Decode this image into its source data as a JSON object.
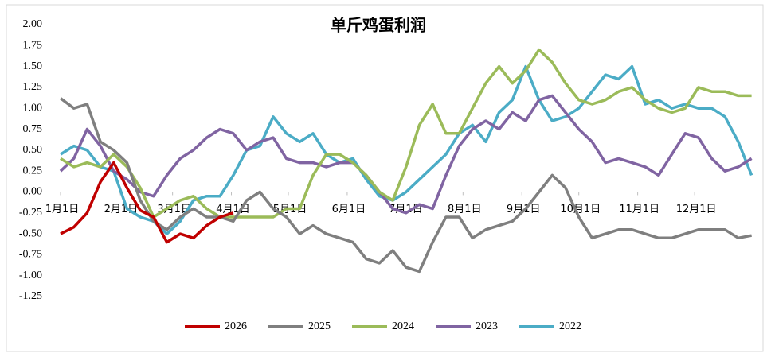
{
  "chart_data": {
    "type": "line",
    "title": "单斤鸡蛋利润",
    "x": [
      1,
      8,
      15,
      22,
      29,
      36,
      43,
      50,
      57,
      64,
      71,
      78,
      85,
      92,
      99,
      106,
      113,
      120,
      127,
      134,
      141,
      148,
      155,
      162,
      169,
      176,
      183,
      190,
      197,
      204,
      211,
      218,
      225,
      232,
      239,
      246,
      253,
      260,
      267,
      274,
      281,
      288,
      295,
      302,
      309,
      316,
      323,
      330,
      337,
      344,
      351,
      358,
      365
    ],
    "xlim": [
      1,
      366
    ],
    "xticks": [
      {
        "value": 1,
        "label": "1月1日"
      },
      {
        "value": 32,
        "label": "2月1日"
      },
      {
        "value": 60,
        "label": "3月1日"
      },
      {
        "value": 91,
        "label": "4月1日"
      },
      {
        "value": 121,
        "label": "5月1日"
      },
      {
        "value": 152,
        "label": "6月1日"
      },
      {
        "value": 182,
        "label": "7月1日"
      },
      {
        "value": 213,
        "label": "8月1日"
      },
      {
        "value": 244,
        "label": "9月1日"
      },
      {
        "value": 274,
        "label": "10月1日"
      },
      {
        "value": 305,
        "label": "11月1日"
      },
      {
        "value": 335,
        "label": "12月1日"
      }
    ],
    "ylim": [
      -1.25,
      2.0
    ],
    "yticks": [
      {
        "value": 2,
        "label": "2.00"
      },
      {
        "value": 1.75,
        "label": "1.75"
      },
      {
        "value": 1.5,
        "label": "1.50"
      },
      {
        "value": 1.25,
        "label": "1.25"
      },
      {
        "value": 1,
        "label": "1.00"
      },
      {
        "value": 0.75,
        "label": "0.75"
      },
      {
        "value": 0.5,
        "label": "0.50"
      },
      {
        "value": 0.25,
        "label": "0.25"
      },
      {
        "value": 0,
        "label": "0.00"
      },
      {
        "value": -0.25,
        "label": "-0.25"
      },
      {
        "value": -0.5,
        "label": "-0.50"
      },
      {
        "value": -0.75,
        "label": "-0.75"
      },
      {
        "value": -1,
        "label": "-1.00"
      },
      {
        "value": -1.25,
        "label": "-1.25"
      }
    ],
    "grid": false,
    "legend": "bottom",
    "series": [
      {
        "name": "2026",
        "color": "#c00000",
        "values": [
          -0.5,
          -0.42,
          -0.25,
          0.12,
          0.35,
          0.05,
          -0.22,
          -0.3,
          -0.6,
          -0.5,
          -0.55,
          -0.4,
          -0.3,
          -0.25,
          null,
          null,
          null,
          null,
          null,
          null,
          null,
          null,
          null,
          null,
          null,
          null,
          null,
          null,
          null,
          null,
          null,
          null,
          null,
          null,
          null,
          null,
          null,
          null,
          null,
          null,
          null,
          null,
          null,
          null,
          null,
          null,
          null,
          null,
          null,
          null,
          null,
          null,
          null
        ]
      },
      {
        "name": "2025",
        "color": "#7f7f7f",
        "values": [
          1.12,
          1.0,
          1.05,
          0.6,
          0.5,
          0.35,
          -0.1,
          -0.35,
          -0.45,
          -0.3,
          -0.2,
          -0.3,
          -0.3,
          -0.35,
          -0.1,
          0.0,
          -0.2,
          -0.3,
          -0.5,
          -0.4,
          -0.5,
          -0.55,
          -0.6,
          -0.8,
          -0.85,
          -0.7,
          -0.9,
          -0.95,
          -0.6,
          -0.3,
          -0.3,
          -0.55,
          -0.45,
          -0.4,
          -0.35,
          -0.2,
          0.0,
          0.2,
          0.05,
          -0.3,
          -0.55,
          -0.5,
          -0.45,
          -0.45,
          -0.5,
          -0.55,
          -0.55,
          -0.5,
          -0.45,
          -0.45,
          -0.45,
          -0.55,
          -0.52
        ]
      },
      {
        "name": "2024",
        "color": "#9bbb59",
        "values": [
          0.4,
          0.3,
          0.35,
          0.3,
          0.45,
          0.3,
          0.05,
          -0.3,
          -0.2,
          -0.1,
          -0.05,
          -0.2,
          -0.3,
          -0.3,
          -0.3,
          -0.3,
          -0.3,
          -0.2,
          -0.2,
          0.2,
          0.45,
          0.45,
          0.35,
          0.2,
          0.0,
          -0.1,
          0.3,
          0.8,
          1.05,
          0.7,
          0.7,
          1.0,
          1.3,
          1.5,
          1.3,
          1.45,
          1.7,
          1.55,
          1.3,
          1.1,
          1.05,
          1.1,
          1.2,
          1.25,
          1.1,
          1.0,
          0.95,
          1.0,
          1.25,
          1.2,
          1.2,
          1.15,
          1.15
        ]
      },
      {
        "name": "2023",
        "color": "#8064a2",
        "values": [
          0.25,
          0.4,
          0.75,
          0.55,
          0.25,
          0.15,
          0.0,
          -0.05,
          0.2,
          0.4,
          0.5,
          0.65,
          0.75,
          0.7,
          0.5,
          0.6,
          0.65,
          0.4,
          0.35,
          0.35,
          0.3,
          0.35,
          0.35,
          0.2,
          0.0,
          -0.2,
          -0.25,
          -0.15,
          -0.2,
          0.2,
          0.55,
          0.75,
          0.85,
          0.75,
          0.95,
          0.85,
          1.1,
          1.15,
          0.95,
          0.75,
          0.6,
          0.35,
          0.4,
          0.35,
          0.3,
          0.2,
          0.45,
          0.7,
          0.65,
          0.4,
          0.25,
          0.3,
          0.4
        ]
      },
      {
        "name": "2022",
        "color": "#4bacc6",
        "values": [
          0.45,
          0.55,
          0.5,
          0.3,
          0.25,
          -0.2,
          -0.3,
          -0.35,
          -0.5,
          -0.35,
          -0.1,
          -0.05,
          -0.05,
          0.2,
          0.5,
          0.55,
          0.9,
          0.7,
          0.6,
          0.7,
          0.45,
          0.35,
          0.4,
          0.15,
          -0.05,
          -0.1,
          0.0,
          0.15,
          0.3,
          0.45,
          0.7,
          0.8,
          0.6,
          0.95,
          1.1,
          1.5,
          1.1,
          0.85,
          0.9,
          1.0,
          1.2,
          1.4,
          1.35,
          1.5,
          1.05,
          1.1,
          1.0,
          1.05,
          1.0,
          1.0,
          0.9,
          0.6,
          0.2
        ]
      }
    ]
  }
}
